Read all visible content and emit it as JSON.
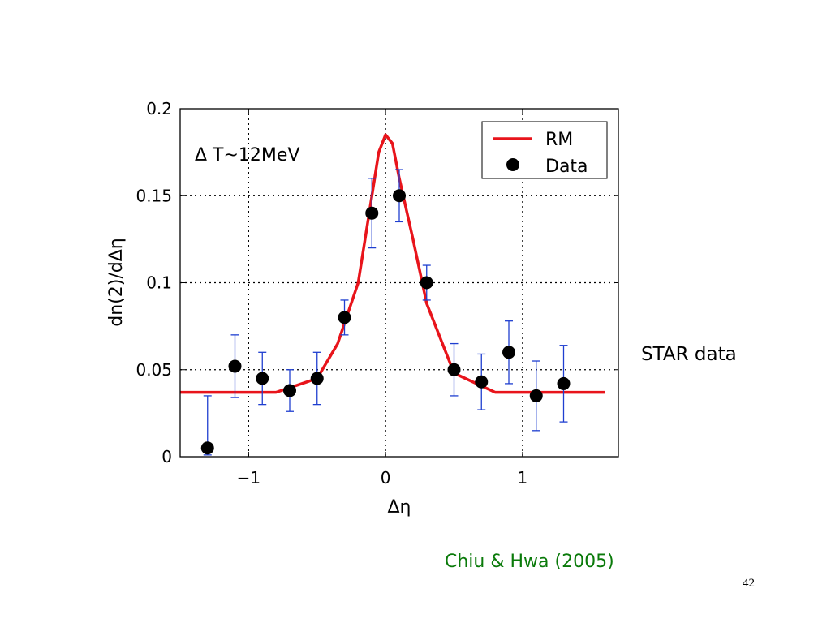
{
  "slide": {
    "side_note": "STAR data",
    "citation": "Chiu & Hwa (2005)",
    "page_number": "42"
  },
  "chart_data": {
    "type": "scatter",
    "title": "",
    "xlabel": "Δη",
    "ylabel": "dn(2)/dΔη",
    "xlim": [
      -1.5,
      1.7
    ],
    "ylim": [
      0,
      0.2
    ],
    "x_ticks": [
      -1,
      0,
      1
    ],
    "x_tick_labels": [
      "−1",
      "0",
      "1"
    ],
    "y_ticks": [
      0,
      0.05,
      0.1,
      0.15,
      0.2
    ],
    "y_tick_labels": [
      "0",
      "0.05",
      "0.1",
      "0.15",
      "0.2"
    ],
    "grid": true,
    "annotation": "Δ T~12MeV",
    "legend_position": "top-right",
    "colors": {
      "model": "#e8141b",
      "data": "#000000",
      "errorbar": "#1f3fd0"
    },
    "series": [
      {
        "name": "RM",
        "kind": "line",
        "x": [
          -1.5,
          -0.8,
          -0.5,
          -0.35,
          -0.2,
          -0.1,
          -0.05,
          0.0,
          0.05,
          0.1,
          0.2,
          0.3,
          0.5,
          0.8,
          1.6
        ],
        "y": [
          0.037,
          0.037,
          0.045,
          0.065,
          0.1,
          0.15,
          0.175,
          0.185,
          0.18,
          0.16,
          0.125,
          0.088,
          0.048,
          0.037,
          0.037
        ]
      },
      {
        "name": "Data",
        "kind": "points",
        "x": [
          -1.3,
          -1.1,
          -0.9,
          -0.7,
          -0.5,
          -0.3,
          -0.1,
          0.1,
          0.3,
          0.5,
          0.7,
          0.9,
          1.1,
          1.3
        ],
        "y": [
          0.005,
          0.052,
          0.045,
          0.038,
          0.045,
          0.08,
          0.14,
          0.15,
          0.1,
          0.05,
          0.043,
          0.06,
          0.035,
          0.042
        ],
        "err_low": [
          0.001,
          0.034,
          0.03,
          0.026,
          0.03,
          0.07,
          0.12,
          0.135,
          0.09,
          0.035,
          0.027,
          0.042,
          0.015,
          0.02
        ],
        "err_high": [
          0.035,
          0.07,
          0.06,
          0.05,
          0.06,
          0.09,
          0.16,
          0.165,
          0.11,
          0.065,
          0.059,
          0.078,
          0.055,
          0.064
        ]
      }
    ]
  }
}
